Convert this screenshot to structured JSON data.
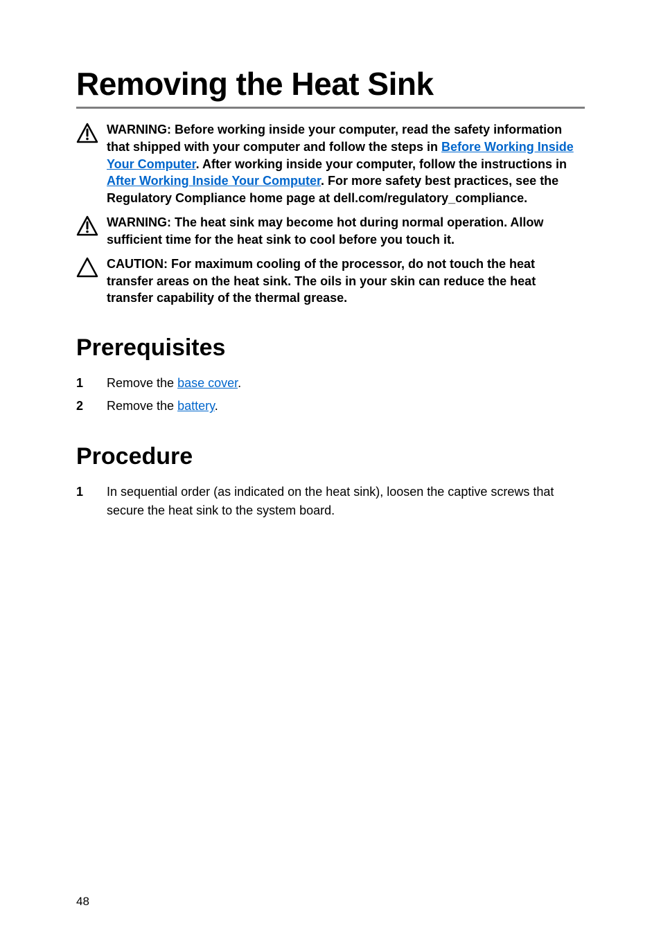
{
  "page": {
    "title": "Removing the Heat Sink",
    "page_number": "48",
    "colors": {
      "text": "#000000",
      "link": "#0066cc",
      "rule": "#7f7f80",
      "background": "#ffffff"
    },
    "typography": {
      "title_fontsize": 46,
      "section_fontsize": 34,
      "body_fontsize": 18
    }
  },
  "callouts": [
    {
      "icon": "warning-triangle-icon",
      "label": "WARNING: ",
      "runs": [
        {
          "t": "Before working inside your computer, read the safety information that shipped with your computer and follow the steps in ",
          "link": false
        },
        {
          "t": "Before Working Inside Your Computer",
          "link": true
        },
        {
          "t": ". After working inside your computer, follow the instructions in ",
          "link": false
        },
        {
          "t": "After Working Inside Your Computer",
          "link": true
        },
        {
          "t": ". For more safety best practices, see the Regulatory Compliance home page at dell.com/regulatory_compliance.",
          "link": false
        }
      ]
    },
    {
      "icon": "warning-triangle-icon",
      "label": "WARNING: ",
      "runs": [
        {
          "t": "The heat sink may become hot during normal operation. Allow sufficient time for the heat sink to cool before you touch it.",
          "link": false
        }
      ]
    },
    {
      "icon": "caution-triangle-icon",
      "label": "CAUTION: ",
      "runs": [
        {
          "t": "For maximum cooling of the processor, do not touch the heat transfer areas on the heat sink. The oils in your skin can reduce the heat transfer capability of the thermal grease.",
          "link": false
        }
      ]
    }
  ],
  "sections": {
    "prerequisites": {
      "heading": "Prerequisites",
      "items": [
        {
          "num": "1",
          "runs": [
            {
              "t": "Remove the ",
              "link": false
            },
            {
              "t": "base cover",
              "link": true
            },
            {
              "t": ".",
              "link": false
            }
          ]
        },
        {
          "num": "2",
          "runs": [
            {
              "t": "Remove the ",
              "link": false
            },
            {
              "t": "battery",
              "link": true
            },
            {
              "t": ".",
              "link": false
            }
          ]
        }
      ]
    },
    "procedure": {
      "heading": "Procedure",
      "items": [
        {
          "num": "1",
          "runs": [
            {
              "t": "In sequential order (as indicated on the heat sink), loosen the captive screws that secure the heat sink to the system board.",
              "link": false
            }
          ]
        }
      ]
    }
  }
}
